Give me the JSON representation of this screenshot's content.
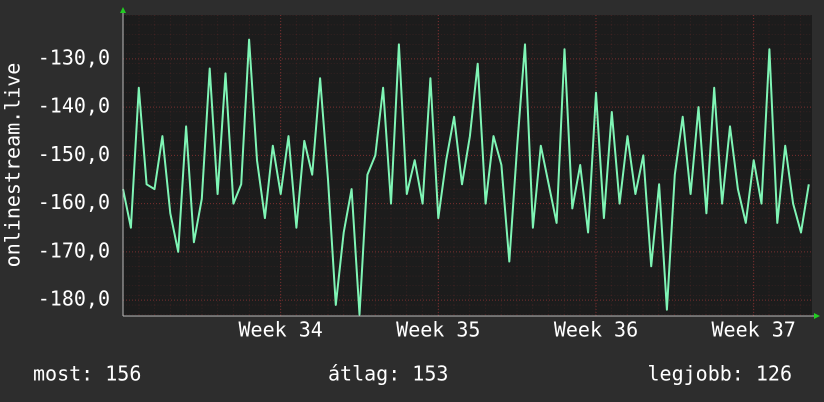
{
  "chart_data": {
    "type": "line",
    "y_label": "onlinestream.live",
    "x": [
      33,
      33.05,
      33.1,
      33.15,
      33.2,
      33.25,
      33.3,
      33.35,
      33.4,
      33.45,
      33.5,
      33.55,
      33.6,
      33.65,
      33.7,
      33.75,
      33.8,
      33.85,
      33.9,
      33.95,
      34,
      34.05,
      34.1,
      34.15,
      34.2,
      34.25,
      34.3,
      34.35,
      34.4,
      34.45,
      34.5,
      34.55,
      34.6,
      34.65,
      34.7,
      34.75,
      34.8,
      34.85,
      34.9,
      34.95,
      35,
      35.05,
      35.1,
      35.15,
      35.2,
      35.25,
      35.3,
      35.35,
      35.4,
      35.45,
      35.5,
      35.55,
      35.6,
      35.65,
      35.7,
      35.75,
      35.8,
      35.85,
      35.9,
      35.95,
      36,
      36.05,
      36.1,
      36.15,
      36.2,
      36.25,
      36.3,
      36.35,
      36.4,
      36.45,
      36.5,
      36.55,
      36.6,
      36.65,
      36.7,
      36.75,
      36.8,
      36.85,
      36.9,
      36.95,
      37,
      37.05,
      37.1,
      37.15,
      37.2,
      37.25,
      37.3,
      37.35
    ],
    "values": [
      -157,
      -165,
      -136,
      -156,
      -157,
      -146,
      -162,
      -170,
      -144,
      -168,
      -159,
      -132,
      -158,
      -133,
      -160,
      -156,
      -126,
      -151,
      -163,
      -148,
      -158,
      -146,
      -165,
      -147,
      -154,
      -134,
      -155,
      -181,
      -166,
      -157,
      -183,
      -154,
      -150,
      -136,
      -160,
      -127,
      -158,
      -151,
      -160,
      -134,
      -163,
      -151,
      -142,
      -156,
      -146,
      -131,
      -160,
      -146,
      -152,
      -172,
      -148,
      -127,
      -165,
      -148,
      -156,
      -164,
      -128,
      -161,
      -152,
      -166,
      -137,
      -163,
      -141,
      -160,
      -146,
      -158,
      -150,
      -173,
      -156,
      -182,
      -154,
      -142,
      -158,
      -140,
      -162,
      -136,
      -160,
      -144,
      -157,
      -164,
      -151,
      -160,
      -128,
      -164,
      -148,
      -160,
      -166,
      -156
    ],
    "color": "#7ff5b5",
    "xlim": [
      33,
      37.37
    ],
    "ylim": [
      -183.3,
      -120.9
    ],
    "xticks": [
      {
        "value": 34,
        "label": "Week 34"
      },
      {
        "value": 35,
        "label": "Week 35"
      },
      {
        "value": 36,
        "label": "Week 36"
      },
      {
        "value": 37,
        "label": "Week 37"
      }
    ],
    "yticks": [
      {
        "value": -130,
        "label": "-130,0"
      },
      {
        "value": -140,
        "label": "-140,0"
      },
      {
        "value": -150,
        "label": "-150,0"
      },
      {
        "value": -160,
        "label": "-160,0"
      },
      {
        "value": -170,
        "label": "-170,0"
      },
      {
        "value": -180,
        "label": "-180,0"
      }
    ],
    "grid": true,
    "stats": {
      "current": "most: 156",
      "average": "átlag: 153",
      "best": "legjobb: 126"
    }
  }
}
